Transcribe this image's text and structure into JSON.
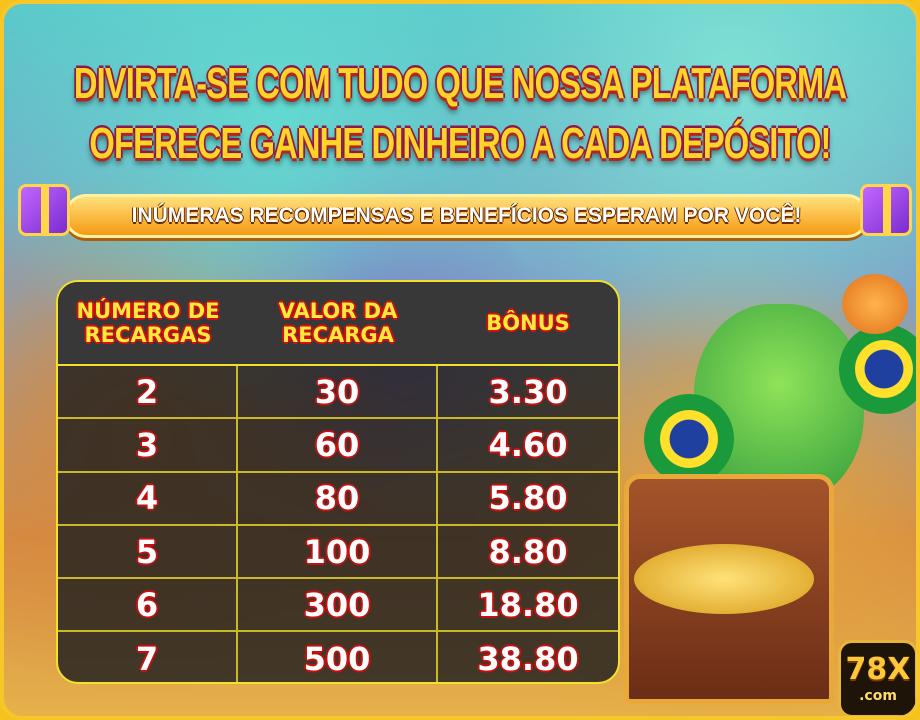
{
  "headline": {
    "line1": "DIVIRTA-SE COM TUDO QUE NOSSA PLATAFORMA",
    "line2": "OFERECE GANHE DINHEIRO A CADA DEPÓSITO!"
  },
  "ribbon": "INÚMERAS RECOMPENSAS E BENEFÍCIOS ESPERAM POR VOCÊ!",
  "table": {
    "headers": [
      "NÚMERO DE RECARGAS",
      "VALOR DA RECARGA",
      "BÔNUS"
    ],
    "rows": [
      [
        "2",
        "30",
        "3.30"
      ],
      [
        "3",
        "60",
        "4.60"
      ],
      [
        "4",
        "80",
        "5.80"
      ],
      [
        "5",
        "100",
        "8.80"
      ],
      [
        "6",
        "300",
        "18.80"
      ],
      [
        "7",
        "500",
        "38.80"
      ]
    ]
  },
  "logo": {
    "main": "78X",
    "sub": ".com"
  },
  "colors": {
    "header_text": "#ffe93a",
    "outline": "#d01010",
    "border": "#f2e02a"
  }
}
